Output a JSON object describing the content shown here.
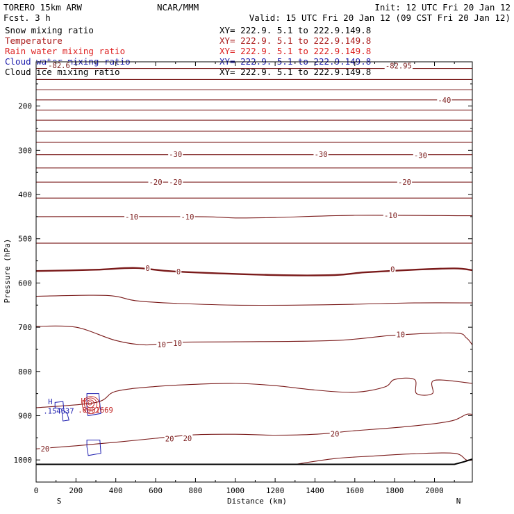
{
  "header": {
    "title_left": "TORERO  15km ARW",
    "fcst": "Fcst.    3 h",
    "center": "NCAR/MMM",
    "init": "Init: 12 UTC Fri 20 Jan 12",
    "valid": "Valid: 15 UTC Fri 20 Jan 12 (09 CST Fri 20 Jan 12)"
  },
  "fields": [
    {
      "name": "Snow mixing ratio",
      "xy": "XY= 222.9.  5.1 to 222.9.149.8",
      "color": "#000000"
    },
    {
      "name": "Temperature",
      "xy": "XY= 222.9.  5.1 to 222.9.149.8",
      "color": "#a81818"
    },
    {
      "name": "Rain water mixing ratio",
      "xy": "XY= 222.9.  5.1 to 222.9.149.8",
      "color": "#dd2020"
    },
    {
      "name": "Cloud water mixing ratio",
      "xy": "XY= 222.9.  5.1 to 222.9.149.8",
      "color": "#1a1aaa"
    },
    {
      "name": "Cloud ice mixing ratio",
      "xy": "XY= 222.9.  5.1 to 222.9.149.8",
      "color": "#000000"
    }
  ],
  "chart_data": {
    "type": "line",
    "xlabel": "Distance (km)",
    "ylabel": "Pressure (hPa)",
    "xlim": [
      0,
      2190
    ],
    "ylim": [
      1050,
      100
    ],
    "x_ticks": [
      0,
      200,
      400,
      600,
      800,
      1000,
      1200,
      1400,
      1600,
      1800,
      2000
    ],
    "y_ticks": [
      200,
      300,
      400,
      500,
      600,
      700,
      800,
      900,
      1000
    ],
    "endpoint_labels": {
      "left": "S",
      "right": "N"
    },
    "colors": {
      "temperature": "#7a1a1a",
      "cloud_water": "#2020b0",
      "rain": "#c02020",
      "ground": "#000000"
    },
    "temperature_contours": [
      {
        "pts": [
          [
            0,
            115
          ],
          [
            2190,
            115
          ]
        ]
      },
      {
        "pts": [
          [
            0,
            140
          ],
          [
            2190,
            140
          ]
        ]
      },
      {
        "pts": [
          [
            0,
            163
          ],
          [
            2190,
            163
          ]
        ]
      },
      {
        "pts": [
          [
            0,
            186
          ],
          [
            2190,
            186
          ]
        ]
      },
      {
        "pts": [
          [
            0,
            209
          ],
          [
            2190,
            209
          ]
        ]
      },
      {
        "pts": [
          [
            0,
            232
          ],
          [
            2190,
            232
          ]
        ]
      },
      {
        "pts": [
          [
            0,
            257
          ],
          [
            2190,
            257
          ]
        ]
      },
      {
        "pts": [
          [
            0,
            282
          ],
          [
            2190,
            282
          ]
        ]
      },
      {
        "pts": [
          [
            0,
            310
          ],
          [
            2190,
            310
          ]
        ]
      },
      {
        "pts": [
          [
            0,
            340
          ],
          [
            2190,
            340
          ]
        ]
      },
      {
        "pts": [
          [
            0,
            372
          ],
          [
            2190,
            372
          ]
        ]
      },
      {
        "pts": [
          [
            0,
            408
          ],
          [
            2190,
            408
          ]
        ]
      },
      {
        "pts": [
          [
            0,
            450
          ],
          [
            800,
            450
          ],
          [
            1000,
            453
          ],
          [
            1200,
            452
          ],
          [
            1600,
            447
          ],
          [
            2190,
            448
          ]
        ]
      },
      {
        "pts": [
          [
            0,
            510
          ],
          [
            2190,
            510
          ]
        ]
      },
      {
        "pts": [
          [
            0,
            573
          ],
          [
            300,
            570
          ],
          [
            500,
            566
          ],
          [
            700,
            574
          ],
          [
            1200,
            582
          ],
          [
            1500,
            582
          ],
          [
            1650,
            576
          ],
          [
            1900,
            570
          ],
          [
            2100,
            567
          ],
          [
            2190,
            571
          ]
        ],
        "bold": true
      },
      {
        "pts": [
          [
            0,
            630
          ],
          [
            350,
            628
          ],
          [
            500,
            640
          ],
          [
            700,
            646
          ],
          [
            1000,
            650
          ],
          [
            1300,
            650
          ],
          [
            1600,
            648
          ],
          [
            1900,
            645
          ],
          [
            2190,
            645
          ]
        ]
      },
      {
        "pts": [
          [
            0,
            698
          ],
          [
            200,
            700
          ],
          [
            400,
            730
          ],
          [
            550,
            740
          ],
          [
            700,
            734
          ],
          [
            1000,
            733
          ],
          [
            1500,
            730
          ],
          [
            1800,
            718
          ],
          [
            2100,
            713
          ],
          [
            2160,
            724
          ],
          [
            2190,
            740
          ]
        ]
      },
      {
        "pts": [
          [
            0,
            882
          ],
          [
            300,
            870
          ],
          [
            400,
            845
          ],
          [
            600,
            834
          ],
          [
            800,
            829
          ],
          [
            1000,
            827
          ],
          [
            1200,
            832
          ],
          [
            1400,
            842
          ],
          [
            1600,
            847
          ],
          [
            1750,
            835
          ],
          [
            1800,
            818
          ],
          [
            1900,
            818
          ],
          [
            1910,
            850
          ],
          [
            1990,
            850
          ],
          [
            2000,
            820
          ],
          [
            2190,
            827
          ]
        ]
      },
      {
        "pts": [
          [
            0,
            975
          ],
          [
            200,
            968
          ],
          [
            400,
            960
          ],
          [
            600,
            951
          ],
          [
            800,
            943
          ],
          [
            1000,
            942
          ],
          [
            1200,
            944
          ],
          [
            1400,
            942
          ],
          [
            1600,
            934
          ],
          [
            1800,
            927
          ],
          [
            2000,
            918
          ],
          [
            2100,
            910
          ],
          [
            2160,
            897
          ],
          [
            2190,
            897
          ]
        ]
      },
      {
        "pts": [
          [
            1300,
            1010
          ],
          [
            1500,
            997
          ],
          [
            1700,
            991
          ],
          [
            1900,
            986
          ],
          [
            2100,
            985
          ],
          [
            2160,
            1000
          ],
          [
            2190,
            1000
          ]
        ]
      }
    ],
    "contour_labels": [
      {
        "x": 115,
        "p": 108,
        "text": "-82.6"
      },
      {
        "x": 1820,
        "p": 109,
        "text": "-82.95"
      },
      {
        "x": 2050,
        "p": 186,
        "text": "-40"
      },
      {
        "x": 700,
        "p": 309,
        "text": "-30"
      },
      {
        "x": 1430,
        "p": 309,
        "text": "-30"
      },
      {
        "x": 1930,
        "p": 311,
        "text": "-30"
      },
      {
        "x": 600,
        "p": 372,
        "text": "-20"
      },
      {
        "x": 700,
        "p": 372,
        "text": "-20"
      },
      {
        "x": 1850,
        "p": 372,
        "text": "-20"
      },
      {
        "x": 480,
        "p": 450,
        "text": "-10"
      },
      {
        "x": 760,
        "p": 450,
        "text": "-10"
      },
      {
        "x": 1780,
        "p": 447,
        "text": "-10"
      },
      {
        "x": 560,
        "p": 566,
        "text": "0"
      },
      {
        "x": 715,
        "p": 574,
        "text": "0"
      },
      {
        "x": 1790,
        "p": 569,
        "text": "0"
      },
      {
        "x": 630,
        "p": 739,
        "text": "10"
      },
      {
        "x": 710,
        "p": 736,
        "text": "10"
      },
      {
        "x": 1830,
        "p": 716,
        "text": "10"
      },
      {
        "x": 45,
        "p": 975,
        "text": "20"
      },
      {
        "x": 670,
        "p": 952,
        "text": "20"
      },
      {
        "x": 760,
        "p": 951,
        "text": "20"
      },
      {
        "x": 1500,
        "p": 941,
        "text": "20"
      }
    ],
    "cloud_water_contours": [
      {
        "pts": [
          [
            95,
            870
          ],
          [
            135,
            868
          ],
          [
            140,
            890
          ],
          [
            155,
            893
          ],
          [
            165,
            910
          ],
          [
            135,
            912
          ],
          [
            128,
            885
          ],
          [
            95,
            882
          ]
        ]
      },
      {
        "pts": [
          [
            255,
            850
          ],
          [
            315,
            850
          ],
          [
            325,
            895
          ],
          [
            260,
            900
          ],
          [
            255,
            885
          ]
        ]
      },
      {
        "pts": [
          [
            255,
            955
          ],
          [
            320,
            955
          ],
          [
            325,
            985
          ],
          [
            262,
            990
          ],
          [
            255,
            970
          ]
        ]
      }
    ],
    "rain_contours": [
      {
        "cx": 270,
        "p": 872,
        "r": 2.5
      },
      {
        "cx": 272,
        "p": 873,
        "r": 5.5
      },
      {
        "cx": 274,
        "p": 874,
        "r": 9
      },
      {
        "cx": 276,
        "p": 876,
        "r": 12.5
      }
    ],
    "marks": [
      {
        "x": 60,
        "p": 868,
        "text": "H",
        "kind": "cloud_water"
      },
      {
        "x": 36,
        "p": 889,
        "text": ".154637",
        "kind": "cloud_water"
      },
      {
        "x": 225,
        "p": 866,
        "text": "H",
        "kind": "rain"
      },
      {
        "x": 210,
        "p": 887,
        "text": ".0001669",
        "kind": "rain"
      }
    ],
    "ground": {
      "pts": [
        [
          0,
          1010
        ],
        [
          2100,
          1010
        ],
        [
          2150,
          1004
        ],
        [
          2190,
          998
        ]
      ]
    }
  }
}
